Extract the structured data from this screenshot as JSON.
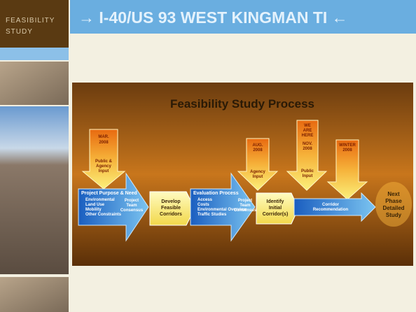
{
  "sidebar": {
    "label": [
      "FEASIBILITY",
      "STUDY"
    ]
  },
  "header": {
    "title": "→ I-40/US 93 WEST KINGMAN TI ←"
  },
  "diagram": {
    "title": "Feasibility Study Process",
    "arrows": [
      {
        "date": [
          "MAR.",
          "2008"
        ],
        "input": [
          "Public &",
          "Agency",
          "Input"
        ]
      },
      {
        "date": [
          "AUG.",
          "2008"
        ],
        "input": [
          "Agency",
          "Input"
        ]
      },
      {
        "note": [
          "WE",
          "ARE",
          "HERE"
        ],
        "date": [
          "NOV.",
          "2008"
        ],
        "input": [
          "Public",
          "Input"
        ]
      },
      {
        "date": [
          "WINTER",
          "2008"
        ]
      }
    ],
    "steps": [
      {
        "title": "Project Purpose & Need",
        "items": [
          "Environmental",
          "Land Use",
          "Mobility",
          "Other Constraints"
        ],
        "consensus": [
          "Project",
          "Team",
          "Consensus"
        ]
      },
      {
        "label": [
          "Develop",
          "Feasible",
          "Corridors"
        ]
      },
      {
        "title": "Evaluation Process",
        "items": [
          "Access",
          "Costs",
          "Environmental Overview",
          "Traffic Studies"
        ],
        "consensus": [
          "Project",
          "Team",
          "Consensus"
        ]
      },
      {
        "label": [
          "Identify",
          "Initial",
          "Corridor(s)"
        ]
      },
      {
        "label": [
          "Corridor",
          "Recommendation"
        ]
      },
      {
        "label": [
          "Next",
          "Phase",
          "Detailed",
          "Study"
        ]
      }
    ]
  }
}
